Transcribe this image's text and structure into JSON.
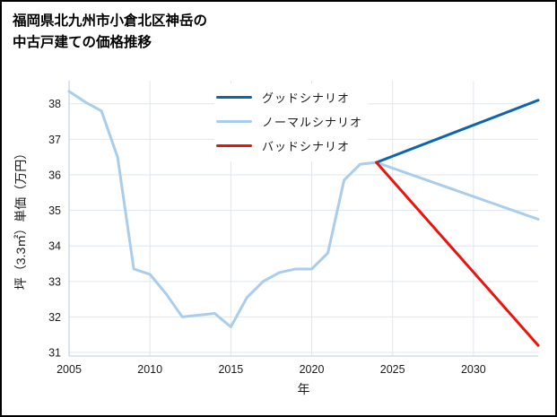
{
  "title": {
    "line1": "福岡県北九州市小倉北区神岳の",
    "line2": "中古戸建ての価格推移"
  },
  "chart_data": {
    "type": "line",
    "title": "福岡県北九州市小倉北区神岳の中古戸建ての価格推移",
    "xlabel": "年",
    "ylabel": "坪（3.3㎡）単価（万円）",
    "xlim": [
      2005,
      2034
    ],
    "ylim": [
      30.9,
      38.65
    ],
    "xticks": [
      2005,
      2010,
      2015,
      2020,
      2025,
      2030
    ],
    "yticks": [
      31,
      32,
      33,
      34,
      35,
      36,
      37,
      38
    ],
    "grid": true,
    "grid_color": "#dde7f1",
    "axis_color": "#c6d6e6",
    "text_color": "#1a1a1a",
    "legend_position": "upper-center-inside",
    "series": [
      {
        "id": "normal",
        "name": "ノーマルシナリオ",
        "color": "#a9cdeb",
        "width": 3,
        "x": [
          2005,
          2006,
          2007,
          2008,
          2009,
          2010,
          2011,
          2012,
          2013,
          2014,
          2015,
          2016,
          2017,
          2018,
          2019,
          2020,
          2021,
          2022,
          2023,
          2024,
          2034
        ],
        "y": [
          38.35,
          38.05,
          37.8,
          36.5,
          33.35,
          33.2,
          32.65,
          32.0,
          32.05,
          32.1,
          31.72,
          32.55,
          33.0,
          33.25,
          33.35,
          33.35,
          33.8,
          35.85,
          36.3,
          36.35,
          34.75
        ]
      },
      {
        "id": "good",
        "name": "グッドシナリオ",
        "color": "#0d65ad",
        "width": 3,
        "x": [
          2024,
          2034
        ],
        "y": [
          36.35,
          38.1
        ]
      },
      {
        "id": "bad",
        "name": "バッドシナリオ",
        "color": "#e8150f",
        "width": 3,
        "x": [
          2024,
          2034
        ],
        "y": [
          36.35,
          31.2
        ]
      }
    ]
  }
}
